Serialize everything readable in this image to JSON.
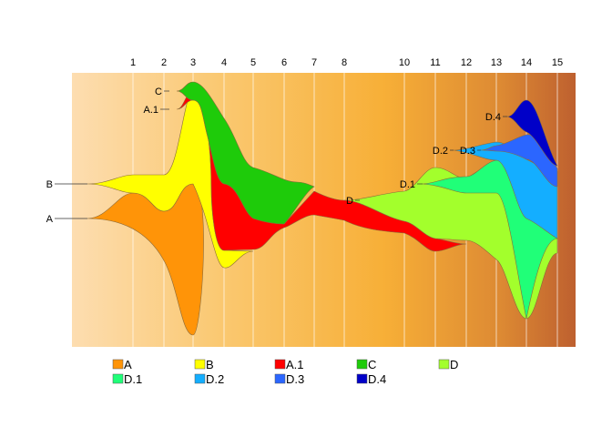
{
  "chart_data": {
    "type": "area",
    "subtype": "streamgraph",
    "title": "",
    "xlabel": "",
    "ylabel": "",
    "x_ticks": [
      "1",
      "2",
      "3",
      "4",
      "5",
      "6",
      "7",
      "8",
      "10",
      "11",
      "12",
      "13",
      "14",
      "15"
    ],
    "background": "orange horizontal gradient",
    "grid_vertical": true,
    "legend_position": "bottom",
    "series": [
      {
        "name": "A",
        "color": "#FF9408",
        "start": 0,
        "label": "A",
        "outline": [
          [
            0,
            -0.3
          ],
          [
            1,
            -1.2
          ],
          [
            2,
            -0.6
          ],
          [
            3,
            -3.2
          ],
          [
            4,
            -1.4
          ],
          [
            5,
            -0.5
          ],
          [
            6,
            -0.4
          ],
          [
            7,
            -0.5
          ],
          [
            8,
            -0.4
          ]
        ]
      },
      {
        "name": "B",
        "color": "#FFFF00",
        "start": 0,
        "label": "B",
        "outline": [
          [
            0,
            -0.2
          ],
          [
            1,
            -0.5
          ],
          [
            2,
            -0.6
          ],
          [
            3,
            -2.8
          ],
          [
            4,
            -1.6
          ],
          [
            5,
            -0.2
          ],
          [
            6,
            -0.2
          ],
          [
            7,
            -0.1
          ],
          [
            8,
            -0.1
          ]
        ]
      },
      {
        "name": "A.1",
        "color": "#FF0000",
        "start": 3,
        "label": "A.1",
        "outline": [
          [
            3,
            -0.5
          ],
          [
            4,
            -1.3
          ],
          [
            5,
            -0.8
          ],
          [
            6,
            -0.4
          ],
          [
            7,
            -0.5
          ],
          [
            8,
            -0.8
          ],
          [
            10,
            -1.0
          ],
          [
            11,
            -0.8
          ],
          [
            12,
            -0.2
          ]
        ]
      },
      {
        "name": "C",
        "color": "#1ECB0A",
        "start": 3,
        "label": "C",
        "outline": [
          [
            3,
            -0.4
          ],
          [
            4,
            -1.6
          ],
          [
            5,
            -1.8
          ],
          [
            6,
            -1.2
          ],
          [
            7,
            -0.4
          ]
        ]
      },
      {
        "name": "D",
        "color": "#A3FF2C",
        "start": 8,
        "label": "D",
        "outline": [
          [
            8,
            -0.2
          ],
          [
            10,
            -0.7
          ],
          [
            11,
            -1.2
          ],
          [
            12,
            -1.6
          ],
          [
            13,
            -3.6
          ],
          [
            14,
            -2.4
          ],
          [
            15,
            -0.5
          ]
        ]
      },
      {
        "name": "D.1",
        "color": "#20FF78",
        "start": 11,
        "label": "D.1",
        "outline": [
          [
            11,
            -0.5
          ],
          [
            12,
            -0.8
          ],
          [
            13,
            -2.4
          ],
          [
            14,
            -0.9
          ],
          [
            15,
            -0.1
          ]
        ]
      },
      {
        "name": "D.2",
        "color": "#14AEFF",
        "start": 12,
        "label": "D.2",
        "outline": [
          [
            12,
            -0.1
          ],
          [
            13,
            -0.7
          ],
          [
            14,
            -0.8
          ],
          [
            15,
            -0.6
          ]
        ]
      },
      {
        "name": "D.3",
        "color": "#2B66FF",
        "start": 12,
        "label": "D.3",
        "outline": [
          [
            12,
            -0.2
          ],
          [
            13,
            -0.7
          ],
          [
            14,
            -1.5
          ],
          [
            15,
            -0.5
          ]
        ]
      },
      {
        "name": "D.4",
        "color": "#0000C8",
        "start": 13,
        "label": "D.4",
        "outline": [
          [
            13,
            -0.1
          ],
          [
            14,
            -1.2
          ],
          [
            15,
            -0.1
          ]
        ]
      }
    ],
    "legend": [
      {
        "label": "A",
        "color": "#FF9408"
      },
      {
        "label": "B",
        "color": "#FFFF00"
      },
      {
        "label": "A.1",
        "color": "#FF0000"
      },
      {
        "label": "C",
        "color": "#1ECB0A"
      },
      {
        "label": "D",
        "color": "#A3FF2C"
      },
      {
        "label": "D.1",
        "color": "#20FF78"
      },
      {
        "label": "D.2",
        "color": "#14AEFF"
      },
      {
        "label": "D.3",
        "color": "#2B66FF"
      },
      {
        "label": "D.4",
        "color": "#0000C8"
      }
    ]
  }
}
